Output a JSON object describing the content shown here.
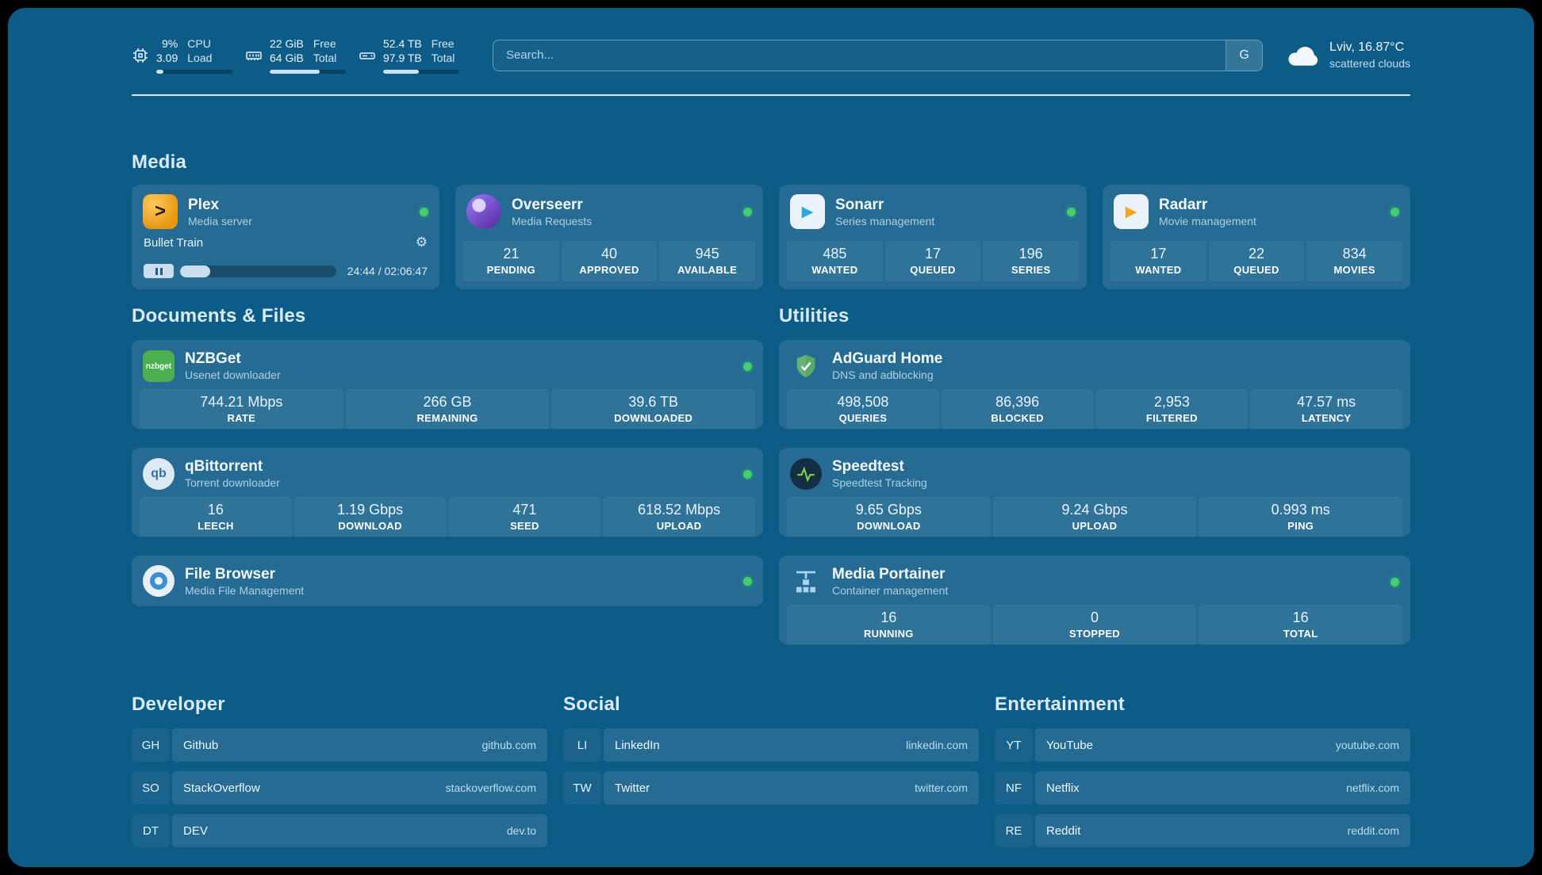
{
  "colors": {
    "status_online": "#43cf6b",
    "accent_fill": "#cde2f1",
    "background": "#0d5b87"
  },
  "topbar": {
    "cpu": {
      "value1": "9%",
      "value2": "3.09",
      "label1": "CPU",
      "label2": "Load",
      "progress": 9
    },
    "memory": {
      "value1": "22 GiB",
      "value2": "64 GiB",
      "label1": "Free",
      "label2": "Total",
      "progress": 66
    },
    "disk": {
      "value1": "52.4 TB",
      "value2": "97.9 TB",
      "label1": "Free",
      "label2": "Total",
      "progress": 47
    },
    "search": {
      "placeholder": "Search...",
      "button_label": "G"
    },
    "weather": {
      "location": "Lviv, 16.87°C",
      "condition": "scattered clouds"
    }
  },
  "media": {
    "title": "Media",
    "plex": {
      "name": "Plex",
      "desc": "Media server",
      "glyph": ">",
      "gear_glyph": "⚙",
      "now_playing": "Bullet Train",
      "time": "24:44 / 02:06:47",
      "progress": 19.5
    },
    "overseerr": {
      "name": "Overseerr",
      "desc": "Media Requests",
      "stats": [
        {
          "value": "21",
          "label": "PENDING"
        },
        {
          "value": "40",
          "label": "APPROVED"
        },
        {
          "value": "945",
          "label": "AVAILABLE"
        }
      ]
    },
    "sonarr": {
      "name": "Sonarr",
      "desc": "Series management",
      "glyph": "▶",
      "stats": [
        {
          "value": "485",
          "label": "WANTED"
        },
        {
          "value": "17",
          "label": "QUEUED"
        },
        {
          "value": "196",
          "label": "SERIES"
        }
      ]
    },
    "radarr": {
      "name": "Radarr",
      "desc": "Movie management",
      "glyph": "▶",
      "stats": [
        {
          "value": "17",
          "label": "WANTED"
        },
        {
          "value": "22",
          "label": "QUEUED"
        },
        {
          "value": "834",
          "label": "MOVIES"
        }
      ]
    }
  },
  "documents": {
    "title": "Documents & Files",
    "nzbget": {
      "name": "NZBGet",
      "desc": "Usenet downloader",
      "icon_text": "nzbget",
      "stats": [
        {
          "value": "744.21 Mbps",
          "label": "RATE"
        },
        {
          "value": "266 GB",
          "label": "REMAINING"
        },
        {
          "value": "39.6 TB",
          "label": "DOWNLOADED"
        }
      ]
    },
    "qbittorrent": {
      "name": "qBittorrent",
      "desc": "Torrent downloader",
      "icon_text": "qb",
      "stats": [
        {
          "value": "16",
          "label": "LEECH"
        },
        {
          "value": "1.19 Gbps",
          "label": "DOWNLOAD"
        },
        {
          "value": "471",
          "label": "SEED"
        },
        {
          "value": "618.52 Mbps",
          "label": "UPLOAD"
        }
      ]
    },
    "filebrowser": {
      "name": "File Browser",
      "desc": "Media File Management"
    }
  },
  "utilities": {
    "title": "Utilities",
    "adguard": {
      "name": "AdGuard Home",
      "desc": "DNS and adblocking",
      "stats": [
        {
          "value": "498,508",
          "label": "QUERIES"
        },
        {
          "value": "86,396",
          "label": "BLOCKED"
        },
        {
          "value": "2,953",
          "label": "FILTERED"
        },
        {
          "value": "47.57 ms",
          "label": "LATENCY"
        }
      ]
    },
    "speedtest": {
      "name": "Speedtest",
      "desc": "Speedtest Tracking",
      "stats": [
        {
          "value": "9.65 Gbps",
          "label": "DOWNLOAD"
        },
        {
          "value": "9.24 Gbps",
          "label": "UPLOAD"
        },
        {
          "value": "0.993 ms",
          "label": "PING"
        }
      ]
    },
    "portainer": {
      "name": "Media Portainer",
      "desc": "Container management",
      "stats": [
        {
          "value": "16",
          "label": "RUNNING"
        },
        {
          "value": "0",
          "label": "STOPPED"
        },
        {
          "value": "16",
          "label": "TOTAL"
        }
      ]
    }
  },
  "bookmarks": {
    "developer": {
      "title": "Developer",
      "items": [
        {
          "abbr": "GH",
          "name": "Github",
          "url": "github.com"
        },
        {
          "abbr": "SO",
          "name": "StackOverflow",
          "url": "stackoverflow.com"
        },
        {
          "abbr": "DT",
          "name": "DEV",
          "url": "dev.to"
        }
      ]
    },
    "social": {
      "title": "Social",
      "items": [
        {
          "abbr": "LI",
          "name": "LinkedIn",
          "url": "linkedin.com"
        },
        {
          "abbr": "TW",
          "name": "Twitter",
          "url": "twitter.com"
        }
      ]
    },
    "entertainment": {
      "title": "Entertainment",
      "items": [
        {
          "abbr": "YT",
          "name": "YouTube",
          "url": "youtube.com"
        },
        {
          "abbr": "NF",
          "name": "Netflix",
          "url": "netflix.com"
        },
        {
          "abbr": "RE",
          "name": "Reddit",
          "url": "reddit.com"
        }
      ]
    }
  }
}
